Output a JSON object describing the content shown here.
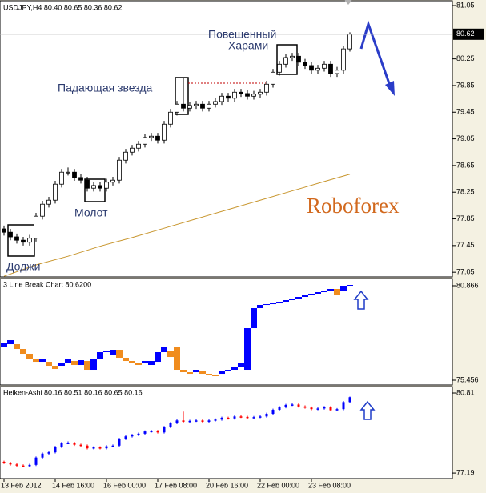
{
  "chart_data": [
    {
      "type": "candlestick",
      "title": "USDJPY,H4 80.40 80.65 80.36 80.62",
      "open": [
        77.7,
        77.65,
        77.58,
        77.53,
        77.5,
        77.56,
        77.89,
        78.07,
        78.13,
        78.37,
        78.55,
        78.55,
        78.47,
        78.43,
        78.31,
        78.35,
        78.31,
        78.4,
        78.43,
        78.73,
        78.85,
        78.91,
        78.97,
        79.07,
        79.09,
        79.03,
        79.27,
        79.45,
        79.57,
        79.51,
        79.55,
        79.57,
        79.51,
        79.57,
        79.61,
        79.69,
        79.66,
        79.75,
        79.73,
        79.69,
        79.72,
        79.75,
        79.87,
        80.05,
        80.17,
        80.27,
        80.29,
        80.2,
        80.15,
        80.08,
        80.11,
        80.17,
        80.03,
        80.08,
        80.4
      ],
      "high": [
        77.75,
        77.7,
        77.63,
        77.58,
        77.61,
        77.94,
        78.12,
        78.18,
        78.42,
        78.6,
        78.62,
        78.6,
        78.52,
        78.48,
        78.4,
        78.4,
        78.45,
        78.48,
        78.78,
        78.9,
        78.96,
        79.02,
        79.12,
        79.14,
        79.14,
        79.32,
        79.5,
        79.62,
        79.97,
        79.6,
        79.62,
        79.62,
        79.62,
        79.66,
        79.74,
        79.74,
        79.8,
        79.8,
        79.78,
        79.77,
        79.8,
        79.92,
        80.1,
        80.22,
        80.32,
        80.34,
        80.34,
        80.25,
        80.2,
        80.16,
        80.22,
        80.22,
        80.13,
        80.45,
        80.65
      ],
      "low": [
        77.6,
        77.53,
        77.48,
        77.45,
        77.45,
        77.51,
        77.84,
        78.02,
        78.08,
        78.32,
        78.5,
        78.42,
        78.38,
        78.26,
        78.26,
        78.26,
        78.26,
        78.35,
        78.38,
        78.68,
        78.8,
        78.86,
        78.92,
        79.02,
        78.98,
        78.98,
        79.22,
        79.4,
        79.46,
        79.46,
        79.5,
        79.46,
        79.46,
        79.52,
        79.56,
        79.61,
        79.61,
        79.68,
        79.64,
        79.64,
        79.67,
        79.7,
        79.82,
        80.0,
        80.12,
        80.22,
        80.15,
        80.1,
        80.03,
        80.03,
        80.06,
        79.98,
        79.98,
        80.03,
        80.36
      ],
      "close": [
        77.65,
        77.58,
        77.53,
        77.5,
        77.56,
        77.89,
        78.07,
        78.13,
        78.37,
        78.55,
        78.55,
        78.47,
        78.43,
        78.31,
        78.35,
        78.31,
        78.4,
        78.43,
        78.73,
        78.85,
        78.91,
        78.97,
        79.07,
        79.09,
        79.03,
        79.27,
        79.45,
        79.57,
        79.51,
        79.55,
        79.57,
        79.51,
        79.57,
        79.61,
        79.69,
        79.66,
        79.75,
        79.73,
        79.69,
        79.72,
        79.75,
        79.87,
        80.05,
        80.17,
        80.27,
        80.29,
        80.2,
        80.15,
        80.08,
        80.11,
        80.17,
        80.03,
        80.08,
        80.4,
        80.62
      ],
      "up_color": "#ffffff",
      "down_color": "#000000",
      "ma": {
        "color": "#c8962e",
        "x": [
          0,
          5,
          10,
          15,
          20,
          25,
          30,
          35,
          40,
          45,
          50,
          54
        ],
        "values": [
          76.99,
          77.16,
          77.29,
          77.44,
          77.57,
          77.71,
          77.85,
          77.99,
          78.13,
          78.27,
          78.41,
          78.52
        ]
      },
      "ylim": [
        76.98,
        81.11
      ],
      "yticks": [
        81.05,
        80.25,
        79.85,
        79.45,
        79.05,
        78.65,
        78.25,
        77.85,
        77.45,
        77.05
      ],
      "current_price": 80.62,
      "xticks": [
        {
          "value": 0,
          "label": "13 Feb 2012"
        },
        {
          "value": 8,
          "label": "14 Feb 16:00"
        },
        {
          "value": 16,
          "label": "16 Feb 00:00"
        },
        {
          "value": 24,
          "label": "17 Feb 08:00"
        },
        {
          "value": 32,
          "label": "20 Feb 16:00"
        },
        {
          "value": 40,
          "label": "22 Feb 00:00"
        },
        {
          "value": 48,
          "label": "23 Feb 08:00"
        }
      ],
      "annotations": [
        "Доджи",
        "Молот",
        "Падающая звезда",
        "Повешенный",
        "Харами"
      ],
      "watermark": "Roboforex"
    },
    {
      "type": "line_break",
      "title": "3 Line Break Chart 80.6200",
      "open": [
        77.336,
        77.519,
        77.519,
        77.244,
        76.969,
        76.694,
        76.51,
        76.51,
        76.281,
        76.281,
        76.464,
        76.556,
        76.327,
        76.556,
        76.052,
        76.694,
        77.061,
        76.923,
        77.198,
        76.74,
        76.556,
        76.419,
        76.419,
        76.327,
        76.51,
        77.061,
        77.152,
        77.381,
        76.052,
        75.914,
        75.914,
        76.006,
        75.822,
        75.731,
        75.822,
        76.006,
        76.052,
        76.235,
        76.052,
        78.436,
        79.582,
        79.766,
        79.811,
        79.857,
        79.949,
        80.041,
        80.132,
        80.224,
        80.316,
        80.408,
        80.499,
        80.591,
        80.683,
        80.591,
        80.866
      ],
      "close": [
        77.611,
        77.748,
        77.244,
        76.969,
        76.694,
        76.51,
        76.694,
        76.281,
        76.098,
        76.464,
        76.648,
        76.327,
        76.602,
        76.052,
        76.694,
        77.061,
        77.152,
        77.198,
        76.74,
        76.556,
        76.419,
        76.327,
        76.556,
        76.556,
        77.061,
        77.381,
        76.785,
        76.052,
        75.914,
        75.822,
        76.052,
        75.822,
        75.731,
        75.685,
        76.006,
        76.052,
        76.235,
        76.419,
        78.436,
        79.582,
        79.766,
        79.811,
        79.857,
        79.949,
        80.041,
        80.132,
        80.224,
        80.316,
        80.408,
        80.499,
        80.591,
        80.683,
        80.316,
        80.866,
        80.912
      ],
      "up_color": "#0000ff",
      "down_color": "#f08c1e",
      "ylim": [
        75.227,
        81.279
      ],
      "yticks": [
        80.866,
        75.456
      ]
    },
    {
      "type": "heiken_ashi",
      "title": "Heiken-Ashi 80.16 80.51 80.16 80.65 80.16",
      "open": [
        77.7,
        77.65,
        77.58,
        77.53,
        77.5,
        77.56,
        77.89,
        78.07,
        78.13,
        78.37,
        78.55,
        78.55,
        78.47,
        78.43,
        78.31,
        78.35,
        78.31,
        78.4,
        78.43,
        78.73,
        78.85,
        78.91,
        78.97,
        79.07,
        79.09,
        79.03,
        79.27,
        79.45,
        79.57,
        79.51,
        79.55,
        79.57,
        79.51,
        79.57,
        79.61,
        79.69,
        79.66,
        79.75,
        79.73,
        79.69,
        79.72,
        79.75,
        79.87,
        80.05,
        80.17,
        80.27,
        80.29,
        80.2,
        80.15,
        80.08,
        80.11,
        80.17,
        80.03,
        80.08,
        80.4
      ],
      "high": [
        77.75,
        77.7,
        77.63,
        77.58,
        77.61,
        77.94,
        78.12,
        78.18,
        78.42,
        78.6,
        78.62,
        78.6,
        78.52,
        78.48,
        78.4,
        78.4,
        78.45,
        78.48,
        78.78,
        78.9,
        78.96,
        79.02,
        79.12,
        79.14,
        79.14,
        79.32,
        79.5,
        79.62,
        79.97,
        79.6,
        79.62,
        79.62,
        79.62,
        79.66,
        79.74,
        79.74,
        79.8,
        79.8,
        79.78,
        79.77,
        79.8,
        79.92,
        80.1,
        80.22,
        80.32,
        80.34,
        80.34,
        80.25,
        80.2,
        80.16,
        80.22,
        80.22,
        80.13,
        80.45,
        80.65
      ],
      "low": [
        77.6,
        77.53,
        77.48,
        77.45,
        77.45,
        77.51,
        77.84,
        78.02,
        78.08,
        78.32,
        78.5,
        78.42,
        78.38,
        78.26,
        78.26,
        78.26,
        78.26,
        78.35,
        78.38,
        78.68,
        78.8,
        78.86,
        78.92,
        79.02,
        78.98,
        78.98,
        79.22,
        79.4,
        79.46,
        79.46,
        79.5,
        79.46,
        79.46,
        79.52,
        79.56,
        79.61,
        79.61,
        79.68,
        79.64,
        79.64,
        79.67,
        79.7,
        79.82,
        80.0,
        80.12,
        80.22,
        80.15,
        80.1,
        80.03,
        80.03,
        80.06,
        79.98,
        79.98,
        80.03,
        80.36
      ],
      "close": [
        77.65,
        77.58,
        77.53,
        77.5,
        77.56,
        77.89,
        78.07,
        78.13,
        78.37,
        78.55,
        78.55,
        78.47,
        78.43,
        78.31,
        78.35,
        78.31,
        78.4,
        78.43,
        78.73,
        78.85,
        78.91,
        78.97,
        79.07,
        79.09,
        79.03,
        79.27,
        79.45,
        79.57,
        79.51,
        79.55,
        79.57,
        79.51,
        79.57,
        79.61,
        79.69,
        79.66,
        79.75,
        79.73,
        79.69,
        79.72,
        79.75,
        79.87,
        80.05,
        80.17,
        80.27,
        80.29,
        80.2,
        80.15,
        80.08,
        80.11,
        80.17,
        80.03,
        80.08,
        80.4,
        80.62
      ],
      "up_color": "#0000ff",
      "down_color": "#ff0000",
      "ylim": [
        76.94,
        81.1
      ],
      "yticks": [
        80.81,
        77.19
      ]
    }
  ]
}
